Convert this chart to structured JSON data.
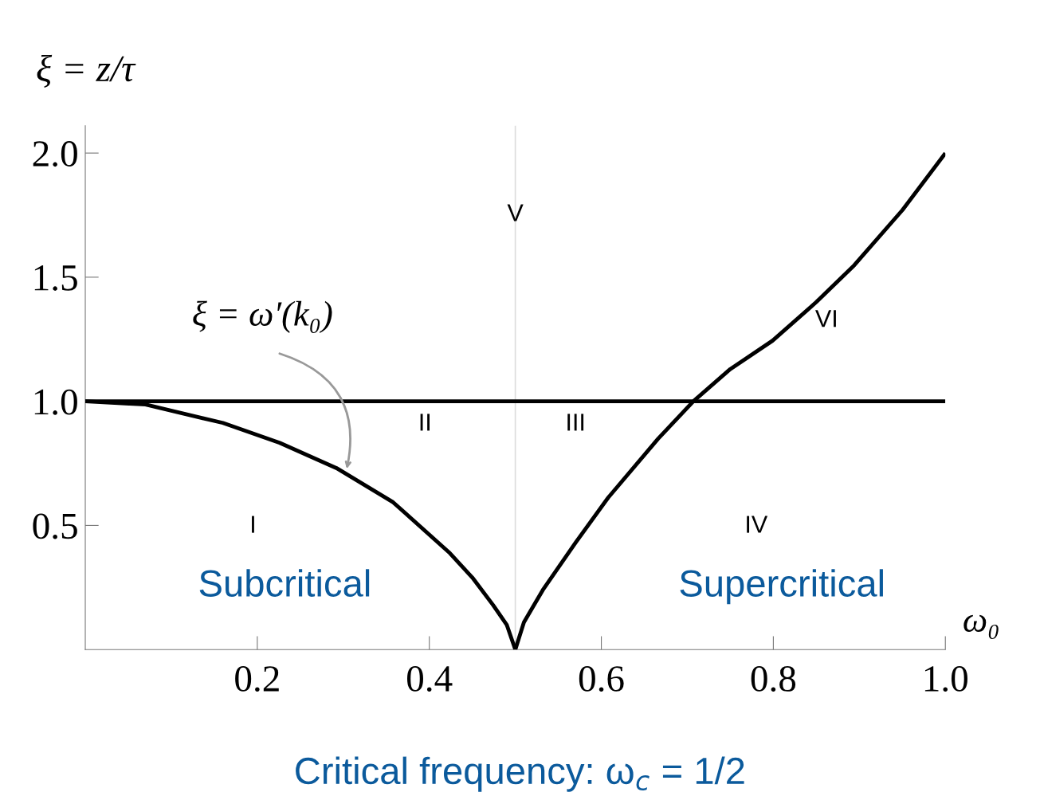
{
  "chart_data": {
    "type": "line",
    "xlabel": "ω₀",
    "ylabel": "ξ = z/τ",
    "xlim": [
      0,
      1.0
    ],
    "ylim": [
      0,
      2.11
    ],
    "xticks": [
      0.2,
      0.4,
      0.6,
      0.8,
      {
        "value": 1.0,
        "label": "1.0"
      }
    ],
    "yticks": [
      0.5,
      {
        "value": 1.0,
        "label": "1.0"
      },
      1.5,
      {
        "value": 2.0,
        "label": "2.0"
      }
    ],
    "grid": false,
    "legend": false,
    "marker": "none",
    "line_style": "solid",
    "series": [
      {
        "color": "#000000",
        "x": [
          0,
          0.07,
          0.16,
          0.226,
          0.292,
          0.358,
          0.424,
          0.45,
          0.474,
          0.49,
          0.5
        ],
        "values": [
          1.0,
          0.987,
          0.913,
          0.833,
          0.731,
          0.593,
          0.388,
          0.29,
          0.18,
          0.1,
          0.0
        ]
      },
      {
        "color": "#000000",
        "x": [
          0.5,
          0.51,
          0.532,
          0.57,
          0.608,
          0.666,
          0.707,
          0.75,
          0.799,
          0.85,
          0.894,
          0.95,
          1.0
        ],
        "values": [
          0.0,
          0.11,
          0.24,
          0.43,
          0.612,
          0.849,
          1.0,
          1.13,
          1.244,
          1.4,
          1.548,
          1.77,
          2.0
        ]
      },
      {
        "color": "#000000",
        "x": [
          0,
          1.0
        ],
        "values": [
          1.0,
          1.0
        ]
      }
    ],
    "ref_lines": [
      {
        "axis": "x",
        "value": 0.5,
        "color": "#dddddd"
      }
    ],
    "annotations": [
      "I",
      "II",
      "III",
      "IV",
      "V",
      "VI",
      "Subcritical",
      "Supercritical",
      "ξ = ω′(k₀)",
      "Critical frequency: ω$_{c}$ = 1/2"
    ]
  }
}
